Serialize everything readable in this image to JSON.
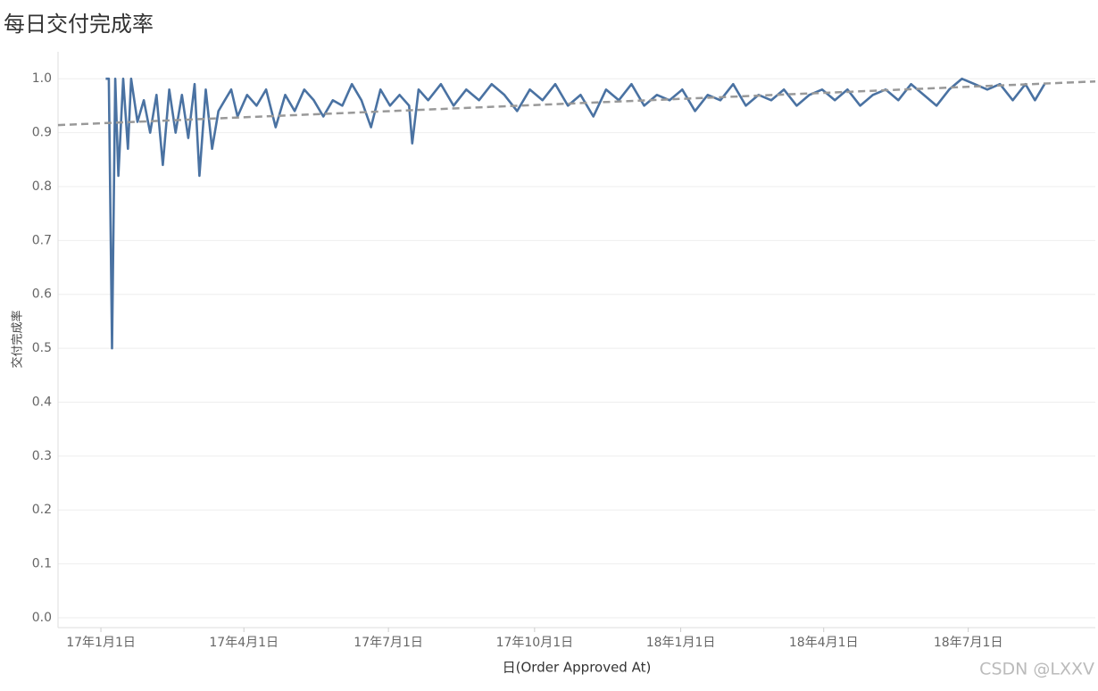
{
  "chart_data": {
    "type": "line",
    "title": "每日交付完成率",
    "y_label": "交付完成率",
    "x_label": "日(Order Approved At)",
    "watermark": "CSDN @LXXV",
    "color": "#4a72a2",
    "x": [
      "2017-01-04",
      "2017-01-06",
      "2017-01-08",
      "2017-01-10",
      "2017-01-12",
      "2017-01-15",
      "2017-01-18",
      "2017-01-20",
      "2017-01-24",
      "2017-01-28",
      "2017-02-01",
      "2017-02-05",
      "2017-02-09",
      "2017-02-13",
      "2017-02-17",
      "2017-02-21",
      "2017-02-25",
      "2017-03-01",
      "2017-03-04",
      "2017-03-08",
      "2017-03-12",
      "2017-03-16",
      "2017-03-20",
      "2017-03-24",
      "2017-03-28",
      "2017-04-03",
      "2017-04-09",
      "2017-04-15",
      "2017-04-21",
      "2017-04-27",
      "2017-05-03",
      "2017-05-09",
      "2017-05-15",
      "2017-05-21",
      "2017-05-27",
      "2017-06-02",
      "2017-06-08",
      "2017-06-14",
      "2017-06-20",
      "2017-06-26",
      "2017-07-02",
      "2017-07-08",
      "2017-07-14",
      "2017-07-16",
      "2017-07-20",
      "2017-07-26",
      "2017-08-03",
      "2017-08-11",
      "2017-08-19",
      "2017-08-27",
      "2017-09-04",
      "2017-09-12",
      "2017-09-20",
      "2017-09-28",
      "2017-10-06",
      "2017-10-14",
      "2017-10-22",
      "2017-10-30",
      "2017-11-07",
      "2017-11-15",
      "2017-11-23",
      "2017-12-01",
      "2017-12-09",
      "2017-12-17",
      "2017-12-25",
      "2018-01-02",
      "2018-01-10",
      "2018-01-18",
      "2018-01-26",
      "2018-02-03",
      "2018-02-11",
      "2018-02-19",
      "2018-02-27",
      "2018-03-07",
      "2018-03-15",
      "2018-03-23",
      "2018-03-31",
      "2018-04-08",
      "2018-04-16",
      "2018-04-24",
      "2018-05-02",
      "2018-05-10",
      "2018-05-18",
      "2018-05-26",
      "2018-06-03",
      "2018-06-11",
      "2018-06-19",
      "2018-06-27",
      "2018-07-05",
      "2018-07-13",
      "2018-07-21",
      "2018-07-29",
      "2018-08-06",
      "2018-08-12",
      "2018-08-18"
    ],
    "values": [
      1.0,
      1.0,
      0.5,
      1.0,
      0.82,
      1.0,
      0.87,
      1.0,
      0.92,
      0.96,
      0.9,
      0.97,
      0.84,
      0.98,
      0.9,
      0.97,
      0.89,
      0.99,
      0.82,
      0.98,
      0.87,
      0.94,
      0.96,
      0.98,
      0.93,
      0.97,
      0.95,
      0.98,
      0.91,
      0.97,
      0.94,
      0.98,
      0.96,
      0.93,
      0.96,
      0.95,
      0.99,
      0.96,
      0.91,
      0.98,
      0.95,
      0.97,
      0.95,
      0.88,
      0.98,
      0.96,
      0.99,
      0.95,
      0.98,
      0.96,
      0.99,
      0.97,
      0.94,
      0.98,
      0.96,
      0.99,
      0.95,
      0.97,
      0.93,
      0.98,
      0.96,
      0.99,
      0.95,
      0.97,
      0.96,
      0.98,
      0.94,
      0.97,
      0.96,
      0.99,
      0.95,
      0.97,
      0.96,
      0.98,
      0.95,
      0.97,
      0.98,
      0.96,
      0.98,
      0.95,
      0.97,
      0.98,
      0.96,
      0.99,
      0.97,
      0.95,
      0.98,
      1.0,
      0.99,
      0.98,
      0.99,
      0.96,
      0.99,
      0.96,
      0.99
    ],
    "trend": {
      "x": [
        "2016-12-05",
        "2018-09-19"
      ],
      "values": [
        0.914,
        0.995
      ],
      "color": "#999999"
    },
    "xlim": [
      "2016-12-05",
      "2018-09-19"
    ],
    "xticks": [
      {
        "value": "2017-01-01",
        "label": "17年1月1日"
      },
      {
        "value": "2017-04-01",
        "label": "17年4月1日"
      },
      {
        "value": "2017-07-01",
        "label": "17年7月1日"
      },
      {
        "value": "2017-10-01",
        "label": "17年10月1日"
      },
      {
        "value": "2018-01-01",
        "label": "18年1月1日"
      },
      {
        "value": "2018-04-01",
        "label": "18年4月1日"
      },
      {
        "value": "2018-07-01",
        "label": "18年7月1日"
      }
    ],
    "ylim": [
      0,
      1.05
    ],
    "yticks": [
      {
        "value": 0,
        "label": "0.0"
      },
      0.1,
      0.2,
      0.3,
      0.4,
      0.5,
      0.6,
      0.7,
      0.8,
      0.9,
      {
        "value": 1,
        "label": "1.0"
      }
    ],
    "grid": true
  }
}
